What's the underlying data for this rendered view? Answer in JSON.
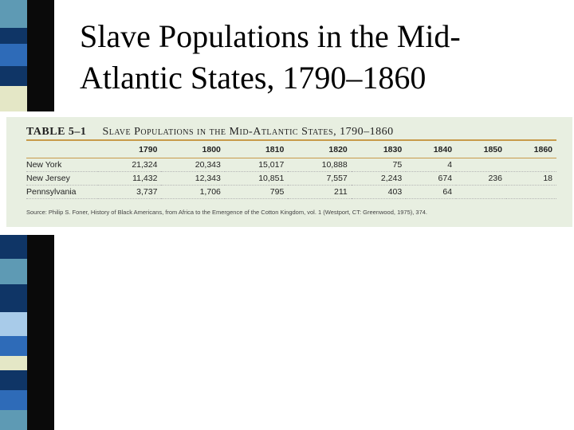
{
  "slide": {
    "title": "Slave Populations in the Mid-Atlantic States, 1790–1860"
  },
  "table": {
    "number": "TABLE 5–1",
    "title": "Slave Populations in the Mid-Atlantic States, 1790–1860",
    "columns": [
      "",
      "1790",
      "1800",
      "1810",
      "1820",
      "1830",
      "1840",
      "1850",
      "1860"
    ],
    "rows": [
      {
        "state": "New York",
        "values": [
          "21,324",
          "20,343",
          "15,017",
          "10,888",
          "75",
          "4",
          "",
          ""
        ]
      },
      {
        "state": "New Jersey",
        "values": [
          "11,432",
          "12,343",
          "10,851",
          "7,557",
          "2,243",
          "674",
          "236",
          "18"
        ]
      },
      {
        "state": "Pennsylvania",
        "values": [
          "3,737",
          "1,706",
          "795",
          "211",
          "403",
          "64",
          "",
          ""
        ]
      }
    ],
    "source": "Source: Philip S. Foner, History of Black Americans, from Africa to the Emergence of the Cotton Kingdom, vol. 1 (Westport, CT: Greenwood, 1975), 374."
  },
  "colors": {
    "panel_bg": "#e8efe1",
    "rule": "#c79a4a",
    "stripe_dark": "#0f3566",
    "stripe_teal": "#5e9ab4",
    "stripe_light": "#a8cbe9",
    "stripe_blue": "#2e6bb8",
    "stripe_cream": "#e4e7c6",
    "stripe_black": "#0a0a0a"
  }
}
